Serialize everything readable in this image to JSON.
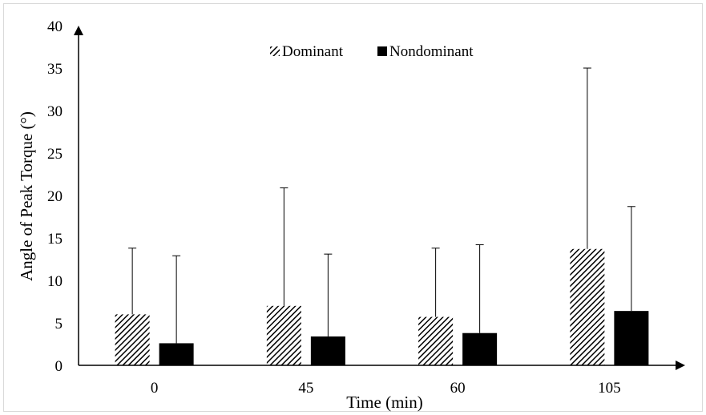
{
  "chart_data": {
    "type": "bar",
    "xlabel": "Time (min)",
    "ylabel": "Angle of Peak Torque (°)",
    "categories": [
      "0",
      "45",
      "60",
      "105"
    ],
    "ylim": [
      0,
      40
    ],
    "yticks": [
      0,
      5,
      10,
      15,
      20,
      25,
      30,
      35,
      40
    ],
    "legend_position": "top-center",
    "grid": false,
    "series": [
      {
        "name": "Dominant",
        "pattern": "diagonal-hatch",
        "color": "#000000",
        "values": [
          6.0,
          7.0,
          5.7,
          13.7
        ],
        "error_upper": [
          13.8,
          20.9,
          13.8,
          35.0
        ]
      },
      {
        "name": "Nondominant",
        "pattern": "solid",
        "color": "#000000",
        "values": [
          2.6,
          3.4,
          3.8,
          6.4
        ],
        "error_upper": [
          12.9,
          13.1,
          14.2,
          18.7
        ]
      }
    ]
  }
}
